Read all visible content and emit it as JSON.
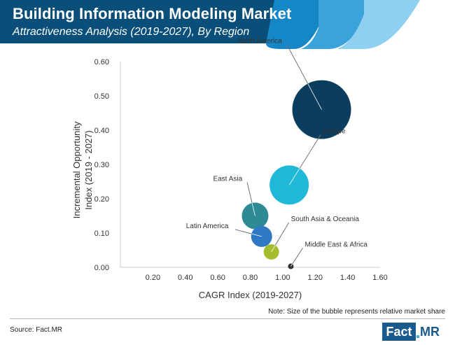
{
  "header": {
    "title": "Building Information Modeling Market",
    "subtitle": "Attractiveness Analysis (2019-2027), By Region",
    "colors": {
      "band": "#0a4f7a",
      "stripe1": "#1586c6",
      "stripe2": "#3aa3dc",
      "stripe3": "#8fd0f1"
    }
  },
  "chart_data": {
    "type": "scatter",
    "subtype": "bubble",
    "title": "",
    "xlabel": "CAGR Index (2019-2027)",
    "ylabel": "Incremental Opportunity Index (2019 - 2027)",
    "xlim": [
      0,
      1.6
    ],
    "ylim": [
      0,
      0.6
    ],
    "xticks": [
      "0.20",
      "0.40",
      "0.60",
      "0.80",
      "1.00",
      "1.20",
      "1.40",
      "1.60"
    ],
    "yticks": [
      "0.00",
      "0.10",
      "0.20",
      "0.30",
      "0.40",
      "0.50",
      "0.60"
    ],
    "grid": false,
    "points": [
      {
        "label": "North America",
        "x": 1.24,
        "y": 0.46,
        "size": 42,
        "color": "#0b3d5e"
      },
      {
        "label": "Europe",
        "x": 1.04,
        "y": 0.24,
        "size": 28,
        "color": "#1fb8d6"
      },
      {
        "label": "East Asia",
        "x": 0.83,
        "y": 0.15,
        "size": 19,
        "color": "#2e8b96"
      },
      {
        "label": "Latin America",
        "x": 0.87,
        "y": 0.09,
        "size": 15,
        "color": "#2f78c4"
      },
      {
        "label": "South Asia & Oceania",
        "x": 0.93,
        "y": 0.045,
        "size": 11,
        "color": "#a3bd2c"
      },
      {
        "label": "Middle East & Africa",
        "x": 1.05,
        "y": 0.003,
        "size": 4,
        "color": "#333333"
      }
    ]
  },
  "note": "Note: Size of the bubble represents relative market share",
  "source": "Source: Fact.MR",
  "logo": {
    "fact": "Fact",
    "mr": "MR"
  }
}
